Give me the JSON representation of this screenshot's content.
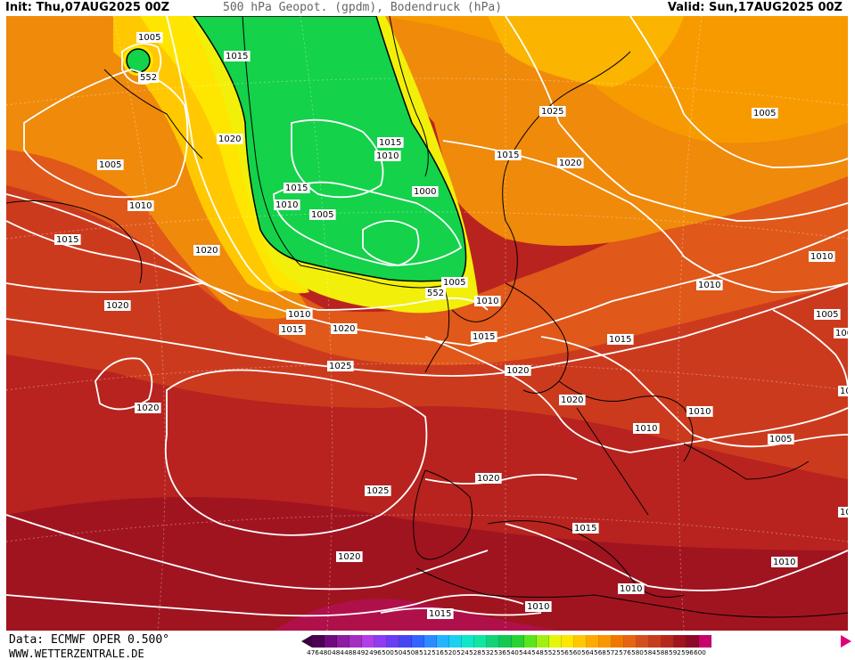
{
  "header": {
    "init": "Init: Thu,07AUG2025 00Z",
    "title": "500 hPa Geopot. (gpdm), Bodendruck (hPa)",
    "valid": "Valid: Sun,17AUG2025 00Z"
  },
  "footer": {
    "source": "Data: ECMWF OPER 0.500°",
    "site": "WWW.WETTERZENTRALE.DE"
  },
  "colorbar": {
    "ticks": [
      "476",
      "480",
      "484",
      "488",
      "492",
      "496",
      "500",
      "504",
      "508",
      "512",
      "516",
      "520",
      "524",
      "528",
      "532",
      "536",
      "540",
      "544",
      "548",
      "552",
      "556",
      "560",
      "564",
      "568",
      "572",
      "576",
      "580",
      "584",
      "588",
      "592",
      "596",
      "600"
    ],
    "colors": [
      "#4b0055",
      "#6e0a7d",
      "#8c1ca0",
      "#a52ec0",
      "#b13ee6",
      "#8e3cf2",
      "#6a3cf2",
      "#4646f5",
      "#3264ff",
      "#2c8cff",
      "#22b4ff",
      "#18d2f0",
      "#10e6c8",
      "#10e6a0",
      "#14d278",
      "#14c850",
      "#28d232",
      "#5ae61e",
      "#a0f014",
      "#e6f50a",
      "#ffe600",
      "#ffc800",
      "#ffaa00",
      "#fa9600",
      "#f07800",
      "#e66414",
      "#d2501e",
      "#c83c1e",
      "#b4281e",
      "#a0141e",
      "#8c0a28",
      "#c8006e"
    ]
  },
  "map_labels": [
    {
      "text": "1005"
    },
    {
      "text": "552"
    },
    {
      "text": "1015"
    },
    {
      "text": "1020"
    },
    {
      "text": "1005"
    },
    {
      "text": "1010"
    },
    {
      "text": "1015"
    },
    {
      "text": "1020"
    },
    {
      "text": "1020"
    },
    {
      "text": "1015"
    },
    {
      "text": "1010"
    },
    {
      "text": "1015"
    },
    {
      "text": "1010"
    },
    {
      "text": "1005"
    },
    {
      "text": "1000"
    },
    {
      "text": "1005"
    },
    {
      "text": "1010"
    },
    {
      "text": "552"
    },
    {
      "text": "1010"
    },
    {
      "text": "1015"
    },
    {
      "text": "1020"
    },
    {
      "text": "1025"
    },
    {
      "text": "1015"
    },
    {
      "text": "1020"
    },
    {
      "text": "1025"
    },
    {
      "text": "1005"
    },
    {
      "text": "1015"
    },
    {
      "text": "1010"
    },
    {
      "text": "1010"
    },
    {
      "text": "1005"
    },
    {
      "text": "1000"
    },
    {
      "text": "1015"
    },
    {
      "text": "1020"
    },
    {
      "text": "1020"
    },
    {
      "text": "1010"
    },
    {
      "text": "1010"
    },
    {
      "text": "1005"
    },
    {
      "text": "1020"
    },
    {
      "text": "1025"
    },
    {
      "text": "1020"
    },
    {
      "text": "1020"
    },
    {
      "text": "1015"
    },
    {
      "text": "1010"
    },
    {
      "text": "1010"
    },
    {
      "text": "1015"
    },
    {
      "text": "1010"
    },
    {
      "text": "10"
    },
    {
      "text": "10"
    }
  ]
}
